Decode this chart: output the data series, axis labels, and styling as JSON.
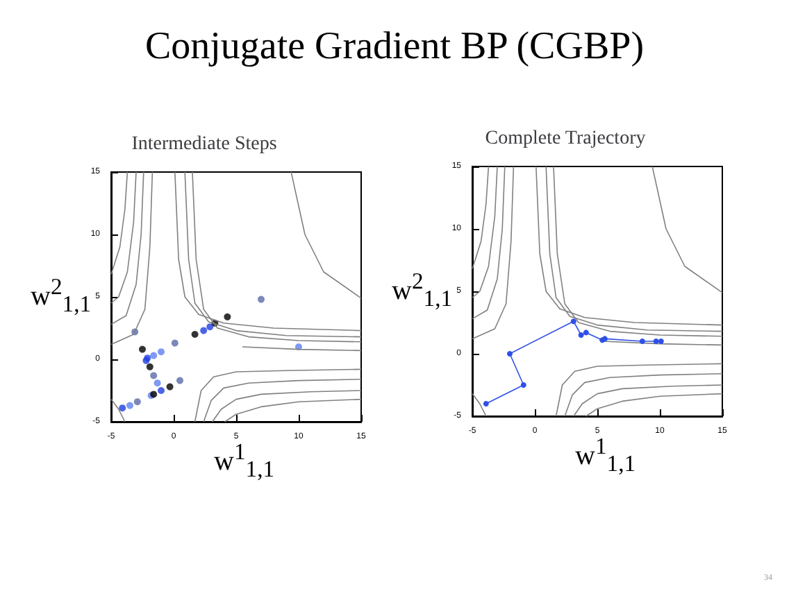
{
  "chart_data": [
    {
      "type": "other",
      "title": "Conjugate Gradient BP (CGBP)",
      "annotations": [
        "34"
      ]
    },
    {
      "type": "scatter",
      "title": "Intermediate Steps",
      "xlabel": "w$^{1}$$_{1,1}$",
      "ylabel": "w$^{2}$$_{1,1}$",
      "xlim": [
        -5,
        15
      ],
      "ylim": [
        -5,
        15
      ],
      "xticks": [
        -5,
        0,
        5,
        10,
        15
      ],
      "yticks": [
        -5,
        0,
        5,
        10,
        15
      ],
      "series": [
        {
          "type": "line",
          "color": "#808080",
          "marker": "none",
          "x": [
            -3.7,
            -3.9,
            -4.3,
            -5
          ],
          "values": [
            15,
            12,
            9,
            6.8
          ]
        },
        {
          "type": "line",
          "color": "#808080",
          "marker": "none",
          "x": [
            -3,
            -3.2,
            -3.7,
            -4.4,
            -5
          ],
          "values": [
            15,
            11,
            7,
            5,
            4.5
          ]
        },
        {
          "type": "line",
          "color": "#808080",
          "marker": "none",
          "x": [
            -2.4,
            -2.6,
            -3,
            -3.8,
            -5
          ],
          "values": [
            15,
            10,
            6,
            3.5,
            2.8
          ]
        },
        {
          "type": "line",
          "color": "#808080",
          "marker": "none",
          "x": [
            -1.7,
            -1.9,
            -2.3,
            -3.2,
            -5
          ],
          "values": [
            15,
            9,
            4,
            2,
            1.2
          ]
        },
        {
          "type": "line",
          "color": "#808080",
          "marker": "none",
          "x": [
            0.1,
            0.4,
            0.9,
            2,
            4,
            8,
            15
          ],
          "values": [
            15,
            8,
            5,
            3.6,
            2.9,
            2.5,
            2.3
          ]
        },
        {
          "type": "line",
          "color": "#808080",
          "marker": "none",
          "x": [
            0.9,
            1.2,
            1.7,
            2.8,
            5,
            9,
            15
          ],
          "values": [
            15,
            8,
            4.5,
            3,
            2.3,
            1.9,
            1.8
          ]
        },
        {
          "type": "line",
          "color": "#808080",
          "marker": "none",
          "x": [
            1.5,
            1.8,
            2.4,
            3.5,
            6,
            10,
            15
          ],
          "values": [
            15,
            8,
            4,
            2.5,
            1.8,
            1.5,
            1.4
          ]
        },
        {
          "type": "line",
          "color": "#808080",
          "marker": "none",
          "x": [
            9.4,
            10.5,
            12,
            15
          ],
          "values": [
            15,
            10,
            7,
            4.9
          ]
        },
        {
          "type": "line",
          "color": "#808080",
          "marker": "none",
          "x": [
            5.5,
            10,
            15
          ],
          "values": [
            1,
            0.8,
            0.7
          ]
        },
        {
          "type": "line",
          "color": "#808080",
          "marker": "none",
          "x": [
            1.7,
            2.2,
            3.2,
            5,
            9,
            15
          ],
          "values": [
            -5,
            -2.5,
            -1.4,
            -1,
            -0.9,
            -0.8
          ]
        },
        {
          "type": "line",
          "color": "#808080",
          "marker": "none",
          "x": [
            2.4,
            3,
            4,
            6,
            10,
            15
          ],
          "values": [
            -5,
            -3.3,
            -2.3,
            -1.9,
            -1.7,
            -1.6
          ]
        },
        {
          "type": "line",
          "color": "#808080",
          "marker": "none",
          "x": [
            3.1,
            3.8,
            5,
            7,
            11,
            15
          ],
          "values": [
            -5,
            -4,
            -3.2,
            -2.8,
            -2.6,
            -2.5
          ]
        },
        {
          "type": "line",
          "color": "#808080",
          "marker": "none",
          "x": [
            4.1,
            5,
            7,
            10,
            15
          ],
          "values": [
            -5,
            -4.4,
            -3.8,
            -3.4,
            -3.2
          ]
        },
        {
          "type": "line",
          "color": "#808080",
          "marker": "none",
          "x": [
            -5,
            -4.4,
            -3.9
          ],
          "values": [
            -3.2,
            -4,
            -5
          ]
        },
        {
          "type": "scatter",
          "color": "#5a6aa8",
          "marker": "circle",
          "x": [
            -3.1,
            0.1,
            -1.6,
            0.5,
            -2.9,
            7
          ],
          "values": [
            2.2,
            1.3,
            -1.3,
            -1.7,
            -3.4,
            4.8
          ]
        },
        {
          "type": "scatter",
          "color": "#6080f0",
          "marker": "circle",
          "x": [
            10,
            -1,
            -1.6,
            -1.3,
            -1.8,
            -3.5
          ],
          "values": [
            1,
            0.6,
            0.3,
            -1.9,
            -2.9,
            -3.7
          ]
        },
        {
          "type": "scatter",
          "color": "#1f3fe0",
          "marker": "circle",
          "x": [
            -4.1,
            -2.1,
            -2.2,
            -1,
            2.4,
            2.9
          ],
          "values": [
            -3.9,
            0.1,
            -0.1,
            -2.5,
            2.3,
            2.6
          ]
        },
        {
          "type": "scatter",
          "color": "#000000",
          "marker": "circle",
          "x": [
            -2.5,
            -1.9,
            1.7,
            3.3,
            4.3,
            -1.6,
            -0.3
          ],
          "values": [
            0.8,
            -0.6,
            2,
            2.9,
            3.4,
            -2.8,
            -2.2
          ]
        }
      ]
    },
    {
      "type": "line",
      "title": "Complete Trajectory",
      "xlabel": "w$^{1}$$_{1,1}$",
      "ylabel": "w$^{2}$$_{1,1}$",
      "xlim": [
        -5,
        15
      ],
      "ylim": [
        -5,
        15
      ],
      "xticks": [
        -5,
        0,
        5,
        10,
        15
      ],
      "yticks": [
        -5,
        0,
        5,
        10,
        15
      ],
      "series": [
        {
          "type": "line",
          "color": "#808080",
          "marker": "none",
          "x": [
            -3.7,
            -3.9,
            -4.3,
            -5
          ],
          "values": [
            15,
            12,
            9,
            6.8
          ]
        },
        {
          "type": "line",
          "color": "#808080",
          "marker": "none",
          "x": [
            -3,
            -3.2,
            -3.7,
            -4.4,
            -5
          ],
          "values": [
            15,
            11,
            7,
            5,
            4.5
          ]
        },
        {
          "type": "line",
          "color": "#808080",
          "marker": "none",
          "x": [
            -2.4,
            -2.6,
            -3,
            -3.8,
            -5
          ],
          "values": [
            15,
            10,
            6,
            3.5,
            2.8
          ]
        },
        {
          "type": "line",
          "color": "#808080",
          "marker": "none",
          "x": [
            -1.7,
            -1.9,
            -2.3,
            -3.2,
            -5
          ],
          "values": [
            15,
            9,
            4,
            2,
            1.2
          ]
        },
        {
          "type": "line",
          "color": "#808080",
          "marker": "none",
          "x": [
            0.1,
            0.4,
            0.9,
            2,
            4,
            8,
            15
          ],
          "values": [
            15,
            8,
            5,
            3.6,
            2.9,
            2.5,
            2.3
          ]
        },
        {
          "type": "line",
          "color": "#808080",
          "marker": "none",
          "x": [
            0.9,
            1.2,
            1.7,
            2.8,
            5,
            9,
            15
          ],
          "values": [
            15,
            8,
            4.5,
            3,
            2.3,
            1.9,
            1.8
          ]
        },
        {
          "type": "line",
          "color": "#808080",
          "marker": "none",
          "x": [
            1.5,
            1.8,
            2.4,
            3.5,
            6,
            10,
            15
          ],
          "values": [
            15,
            8,
            4,
            2.5,
            1.8,
            1.5,
            1.4
          ]
        },
        {
          "type": "line",
          "color": "#808080",
          "marker": "none",
          "x": [
            9.4,
            10.5,
            12,
            15
          ],
          "values": [
            15,
            10,
            7,
            4.9
          ]
        },
        {
          "type": "line",
          "color": "#808080",
          "marker": "none",
          "x": [
            5.5,
            10,
            15
          ],
          "values": [
            1,
            0.8,
            0.7
          ]
        },
        {
          "type": "line",
          "color": "#808080",
          "marker": "none",
          "x": [
            1.7,
            2.2,
            3.2,
            5,
            9,
            15
          ],
          "values": [
            -5,
            -2.5,
            -1.4,
            -1,
            -0.9,
            -0.8
          ]
        },
        {
          "type": "line",
          "color": "#808080",
          "marker": "none",
          "x": [
            2.4,
            3,
            4,
            6,
            10,
            15
          ],
          "values": [
            -5,
            -3.3,
            -2.3,
            -1.9,
            -1.7,
            -1.6
          ]
        },
        {
          "type": "line",
          "color": "#808080",
          "marker": "none",
          "x": [
            3.1,
            3.8,
            5,
            7,
            11,
            15
          ],
          "values": [
            -5,
            -4,
            -3.2,
            -2.8,
            -2.6,
            -2.5
          ]
        },
        {
          "type": "line",
          "color": "#808080",
          "marker": "none",
          "x": [
            4.1,
            5,
            7,
            10,
            15
          ],
          "values": [
            -5,
            -4.4,
            -3.8,
            -3.4,
            -3.2
          ]
        },
        {
          "type": "line",
          "color": "#808080",
          "marker": "none",
          "x": [
            -5,
            -4.4,
            -3.9
          ],
          "values": [
            -3.2,
            -4,
            -5
          ]
        },
        {
          "type": "line",
          "color": "#2f50e8",
          "marker": "circle",
          "x": [
            -3.9,
            -0.9,
            -2,
            3.1,
            3.7,
            4.1,
            5.4,
            5.6,
            8.6,
            9.7,
            10.1
          ],
          "values": [
            -4,
            -2.5,
            0,
            2.6,
            1.5,
            1.7,
            1.1,
            1.2,
            1,
            1,
            1
          ]
        }
      ]
    }
  ]
}
